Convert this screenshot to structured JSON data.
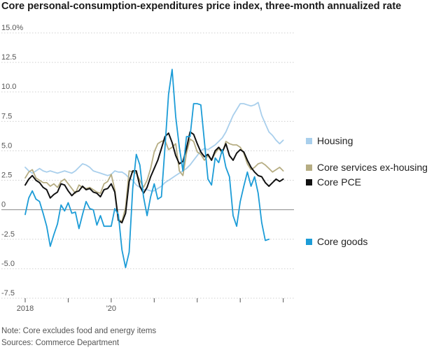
{
  "chart_data": {
    "type": "line",
    "title": "Core personal-consumption-expenditures price index, three-month annualized rate",
    "xlabel": "",
    "ylabel": "",
    "ylim": [
      -7.5,
      15.0
    ],
    "yticks": [
      {
        "value": 15.0,
        "label": "15.0%"
      },
      {
        "value": 12.5,
        "label": "12.5"
      },
      {
        "value": 10.0,
        "label": "10.0"
      },
      {
        "value": 7.5,
        "label": "7.5"
      },
      {
        "value": 5.0,
        "label": "5.0"
      },
      {
        "value": 2.5,
        "label": "2.5"
      },
      {
        "value": 0,
        "label": "0"
      },
      {
        "value": -2.5,
        "label": "-2.5"
      },
      {
        "value": -5.0,
        "label": "-5.0"
      },
      {
        "value": -7.5,
        "label": "-7.5"
      }
    ],
    "xlim": [
      "2018-01",
      "2024-04"
    ],
    "xticks": [
      {
        "month": "2018-01",
        "label": "2018"
      },
      {
        "month": "2019-01",
        "label": ""
      },
      {
        "month": "2020-01",
        "label": "'20"
      },
      {
        "month": "2021-01",
        "label": ""
      },
      {
        "month": "2022-01",
        "label": ""
      },
      {
        "month": "2023-01",
        "label": ""
      },
      {
        "month": "2024-01",
        "label": ""
      }
    ],
    "grid": true,
    "legend_placement": "right",
    "x_start": "2018-01",
    "x_frequency": "monthly",
    "series": [
      {
        "name": "Housing",
        "color": "#a9cfec",
        "values": [
          3.6,
          3.3,
          3.1,
          3.3,
          3.5,
          3.3,
          3.2,
          3.3,
          3.2,
          3.1,
          3.2,
          3.3,
          3.2,
          3.1,
          3.3,
          3.6,
          3.9,
          3.8,
          3.6,
          3.3,
          3.2,
          3.1,
          3.0,
          2.9,
          3.0,
          3.3,
          3.2,
          3.2,
          3.0,
          2.7,
          2.5,
          2.1,
          1.9,
          1.7,
          1.7,
          1.6,
          1.6,
          1.8,
          2.0,
          2.3,
          2.5,
          2.7,
          2.9,
          3.1,
          3.3,
          3.5,
          3.8,
          4.2,
          4.6,
          5.0,
          5.2,
          5.1,
          5.3,
          5.5,
          5.8,
          6.1,
          6.6,
          7.3,
          8.0,
          8.5,
          9.0,
          9.0,
          8.9,
          8.8,
          8.9,
          9.1,
          8.0,
          7.3,
          6.6,
          6.3,
          5.9,
          5.6,
          5.9
        ]
      },
      {
        "name": "Core services ex-housing",
        "color": "#b6ad83",
        "values": [
          2.7,
          3.2,
          3.4,
          2.7,
          2.5,
          2.3,
          2.3,
          2.0,
          2.2,
          1.9,
          2.4,
          2.6,
          2.2,
          1.8,
          1.4,
          2.1,
          1.9,
          1.8,
          1.9,
          1.7,
          1.5,
          1.4,
          2.2,
          2.4,
          3.0,
          1.7,
          -0.8,
          -1.0,
          0.2,
          3.3,
          3.2,
          3.1,
          2.5,
          1.9,
          2.5,
          3.5,
          4.9,
          5.6,
          5.8,
          5.9,
          5.1,
          5.3,
          5.6,
          3.3,
          2.9,
          4.8,
          6.0,
          5.8,
          4.9,
          4.7,
          4.2,
          4.6,
          4.2,
          4.8,
          5.2,
          4.8,
          5.8,
          5.6,
          5.5,
          5.5,
          5.3,
          4.8,
          3.9,
          3.4,
          3.6,
          3.9,
          4.0,
          3.8,
          3.5,
          3.2,
          3.4,
          3.6,
          3.3
        ]
      },
      {
        "name": "Core PCE",
        "color": "#111111",
        "values": [
          2.1,
          2.6,
          2.9,
          2.5,
          2.3,
          1.9,
          1.7,
          1.0,
          1.3,
          1.5,
          2.2,
          2.1,
          1.6,
          1.2,
          1.5,
          1.6,
          2.0,
          1.7,
          1.8,
          1.5,
          1.4,
          1.1,
          1.7,
          1.8,
          2.2,
          1.5,
          -0.9,
          -1.1,
          -0.3,
          2.4,
          3.3,
          3.3,
          2.0,
          1.4,
          1.9,
          2.8,
          3.5,
          4.2,
          5.2,
          6.2,
          6.5,
          5.7,
          4.6,
          3.9,
          4.1,
          5.2,
          6.6,
          6.4,
          5.6,
          4.9,
          4.5,
          4.7,
          4.2,
          5.0,
          5.3,
          4.9,
          5.6,
          4.6,
          4.2,
          4.8,
          5.1,
          4.9,
          4.2,
          3.6,
          3.2,
          2.9,
          2.8,
          2.3,
          2.0,
          2.3,
          2.6,
          2.4,
          2.6
        ]
      },
      {
        "name": "Core goods",
        "color": "#1c9cd7",
        "values": [
          -0.4,
          1.0,
          1.6,
          0.9,
          0.7,
          -0.3,
          -1.4,
          -3.1,
          -2.1,
          -1.2,
          0.4,
          -0.1,
          0.6,
          -0.3,
          -0.2,
          -1.6,
          -0.4,
          0.7,
          0.1,
          0.0,
          -1.3,
          -0.5,
          -1.4,
          -1.4,
          -1.4,
          0.1,
          -0.4,
          -3.4,
          -4.9,
          -3.6,
          1.8,
          4.7,
          3.8,
          1.1,
          -0.5,
          1.1,
          2.2,
          0.9,
          1.1,
          5.3,
          9.8,
          11.9,
          7.9,
          5.3,
          3.3,
          6.2,
          6.2,
          9.0,
          9.0,
          8.9,
          5.8,
          2.6,
          2.1,
          4.4,
          4.0,
          5.1,
          3.6,
          2.8,
          -0.5,
          -1.4,
          0.7,
          2.0,
          3.2,
          2.0,
          2.8,
          1.4,
          -1.1,
          -2.6,
          -2.5
        ]
      }
    ],
    "legend": [
      {
        "label": "Housing",
        "color": "#a9cfec"
      },
      {
        "label": "Core services ex-housing",
        "color": "#b6ad83"
      },
      {
        "label": "Core PCE",
        "color": "#111111"
      },
      {
        "label": "Core goods",
        "color": "#1c9cd7"
      }
    ]
  },
  "notes": {
    "note": "Note: Core excludes food and energy items",
    "source": "Sources: Commerce Department"
  }
}
